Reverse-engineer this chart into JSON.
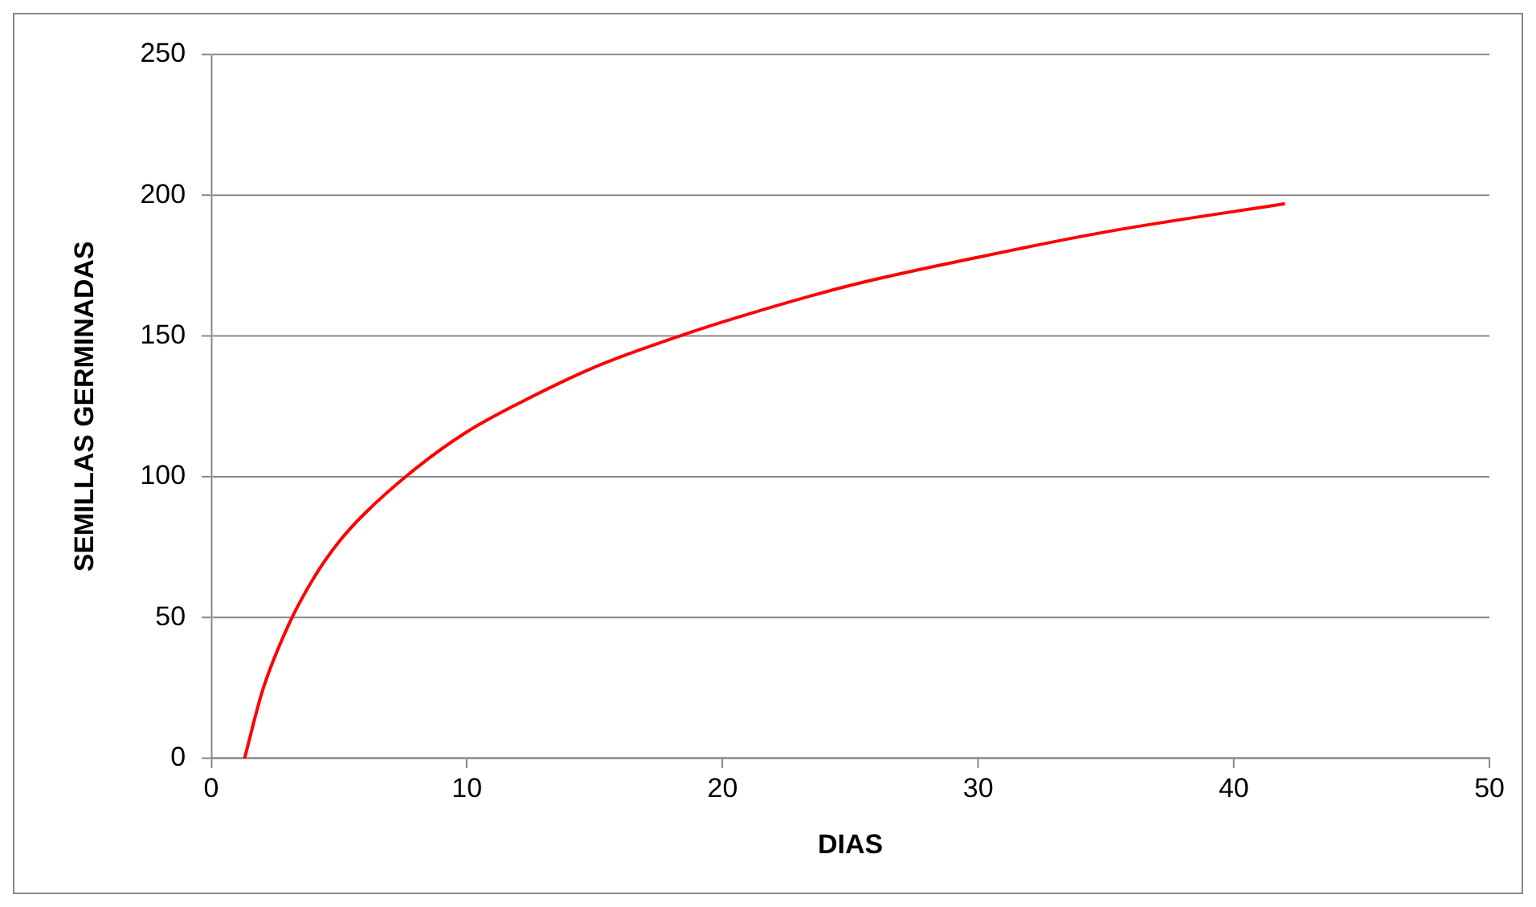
{
  "chart_data": {
    "type": "line",
    "xlabel": "DIAS",
    "ylabel": "SEMILLAS GERMINADAS",
    "x": [
      1.3,
      2,
      3,
      4,
      5,
      6,
      8,
      10,
      12,
      15,
      18,
      20,
      25,
      30,
      35,
      42
    ],
    "series": [
      {
        "color": "#ff0000",
        "values": [
          0,
          24,
          47,
          64,
          77,
          87,
          103,
          116,
          126,
          139,
          149,
          155,
          168,
          178,
          187,
          197
        ]
      }
    ],
    "xlim": [
      0,
      50
    ],
    "xticks": [
      0,
      10,
      20,
      30,
      40,
      50
    ],
    "ylim": [
      0,
      250
    ],
    "yticks": [
      0,
      50,
      100,
      150,
      200,
      250
    ],
    "grid": "y",
    "legend": false,
    "marker": "none",
    "line_style": "solid"
  }
}
